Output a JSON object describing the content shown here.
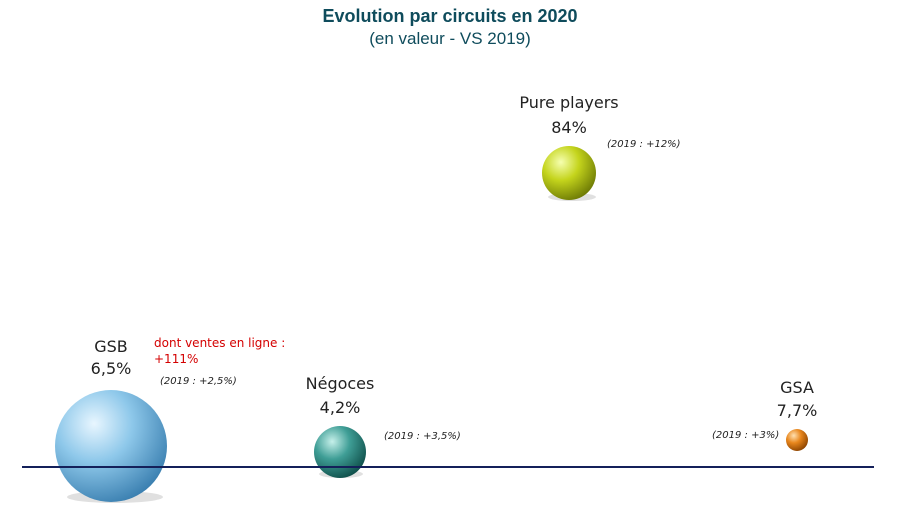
{
  "chart_data": {
    "type": "bubble",
    "title": "Evolution par circuits en 2020",
    "subtitle": "(en valeur - VS 2019)",
    "points": [
      {
        "name": "GSB",
        "value_label": "6,5%",
        "note": "(2019 : +2,5%)",
        "extra_label": "dont ventes en ligne :",
        "extra_value": "+111%",
        "color": "#8ec8ea",
        "value": 6.5
      },
      {
        "name": "Négoces",
        "value_label": "4,2%",
        "note": "(2019 : +3,5%)",
        "color": "#3f9e96",
        "value": 4.2
      },
      {
        "name": "Pure players",
        "value_label": "84%",
        "note": "(2019 : +12%)",
        "color": "#c4d41c",
        "value": 84
      },
      {
        "name": "GSA",
        "value_label": "7,7%",
        "note": "(2019 : +3%)",
        "color": "#e8861c",
        "value": 7.7
      }
    ]
  }
}
